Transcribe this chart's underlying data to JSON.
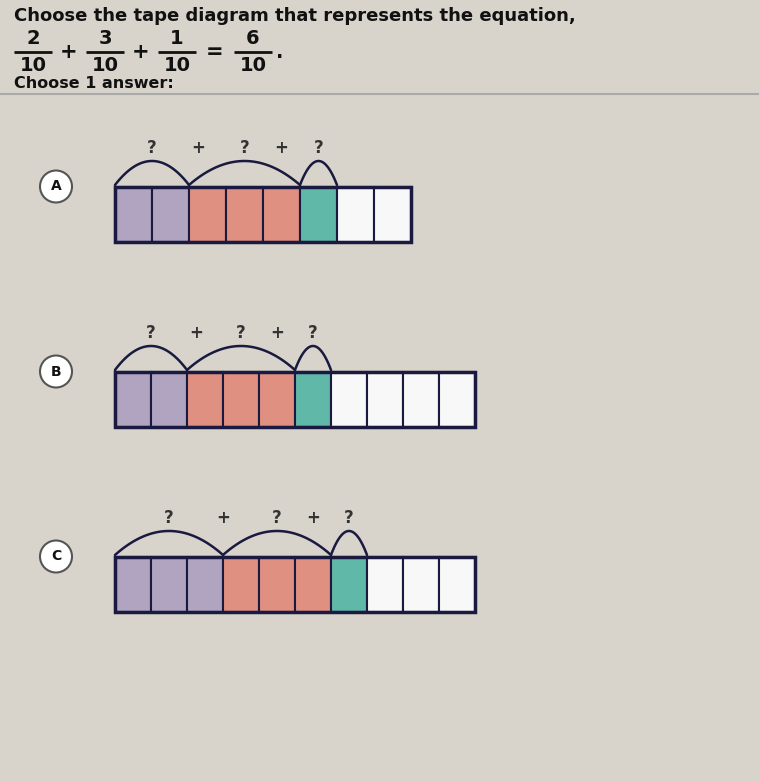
{
  "bg_color": "#d8d4cb",
  "title": "Choose the tape diagram that represents the equation,",
  "eq": {
    "fracs": [
      [
        "2",
        "10"
      ],
      [
        "3",
        "10"
      ],
      [
        "1",
        "10"
      ],
      [
        "6",
        "10"
      ]
    ],
    "ops": [
      "+",
      "+",
      "="
    ],
    "period": "."
  },
  "choose_text": "Choose 1 answer:",
  "border_color": "#1a1a40",
  "options": [
    {
      "letter": "A",
      "groups": [
        2,
        3,
        1
      ],
      "colors": [
        "#b0a4c0",
        "#b0a4c0",
        "#e09080",
        "#e09080",
        "#e09080",
        "#60b8a8",
        "#f8f8f8",
        "#f8f8f8"
      ],
      "total_cells": 8
    },
    {
      "letter": "B",
      "groups": [
        2,
        3,
        1
      ],
      "colors": [
        "#b0a4c0",
        "#b0a4c0",
        "#e09080",
        "#e09080",
        "#e09080",
        "#60b8a8",
        "#f8f8f8",
        "#f8f8f8",
        "#f8f8f8",
        "#f8f8f8"
      ],
      "total_cells": 10
    },
    {
      "letter": "C",
      "groups": [
        3,
        3,
        1
      ],
      "colors": [
        "#b0a4c0",
        "#b0a4c0",
        "#b0a4c0",
        "#e09080",
        "#e09080",
        "#e09080",
        "#60b8a8",
        "#f8f8f8",
        "#f8f8f8",
        "#f8f8f8"
      ],
      "total_cells": 10
    }
  ]
}
